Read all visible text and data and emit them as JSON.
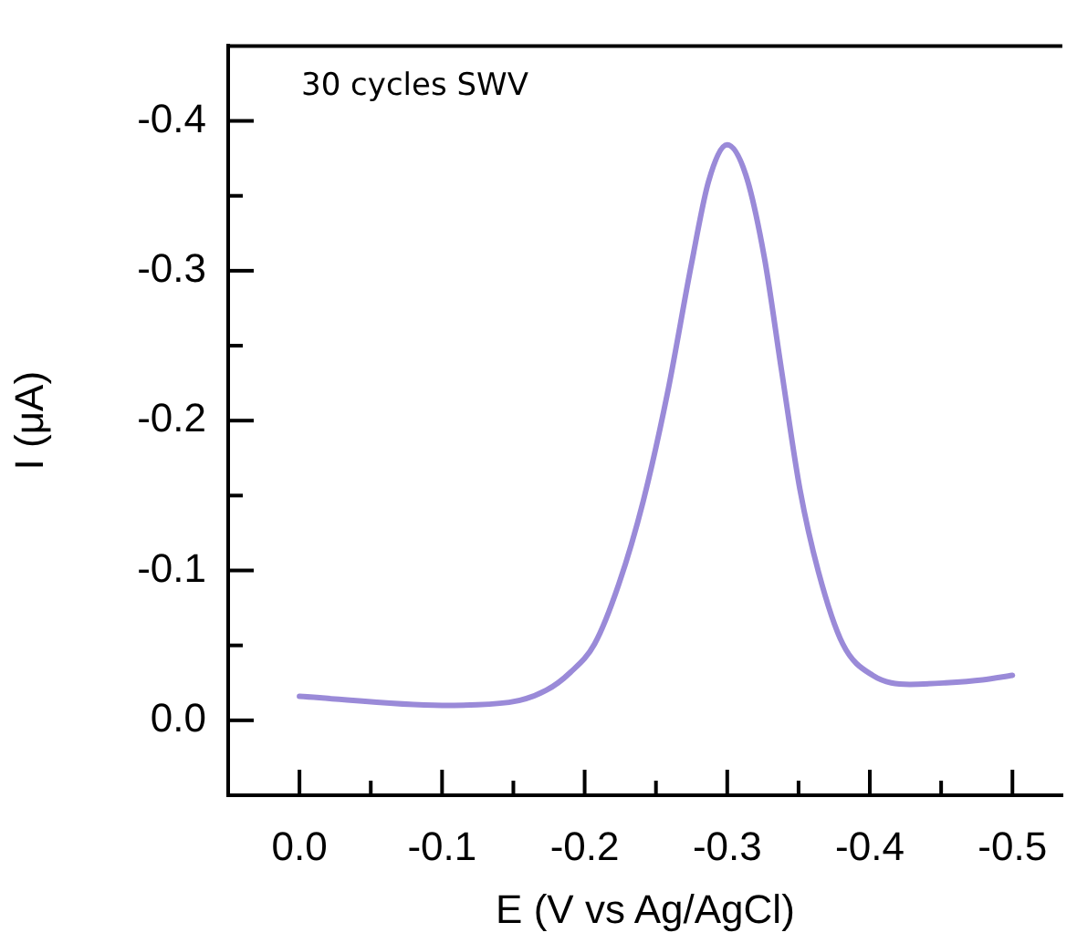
{
  "chart_data": {
    "type": "line",
    "xlabel": "E (V vs Ag/AgCl)",
    "ylabel": "I (μA)",
    "annotations": [
      "30 cycles SWV"
    ],
    "x": [
      0,
      -0.1,
      -0.147,
      -0.173,
      -0.19,
      -0.207,
      -0.224,
      -0.241,
      -0.258,
      -0.275,
      -0.287,
      -0.3,
      -0.313,
      -0.326,
      -0.338,
      -0.351,
      -0.364,
      -0.381,
      -0.402,
      -0.428,
      -0.453,
      -0.479,
      -0.5
    ],
    "series": [
      {
        "color": "#9a8ad8",
        "values": [
          -0.016,
          -0.01,
          -0.012,
          -0.02,
          -0.032,
          -0.051,
          -0.091,
          -0.146,
          -0.218,
          -0.305,
          -0.36,
          -0.384,
          -0.364,
          -0.309,
          -0.234,
          -0.154,
          -0.099,
          -0.051,
          -0.03,
          -0.024,
          -0.025,
          -0.027,
          -0.03
        ]
      }
    ],
    "xlim": [
      0.05,
      -0.535
    ],
    "ylim": [
      0.05,
      -0.45
    ],
    "xticks": [
      {
        "value": 0,
        "label": "0.0"
      },
      {
        "value": -0.05,
        "label": null
      },
      -0.1,
      {
        "value": -0.15,
        "label": null
      },
      -0.2,
      {
        "value": -0.25,
        "label": null
      },
      -0.3,
      {
        "value": -0.35,
        "label": null
      },
      -0.4,
      {
        "value": -0.45,
        "label": null
      },
      -0.5
    ],
    "yticks": [
      {
        "value": 0,
        "label": "0.0"
      },
      {
        "value": -0.05,
        "label": null
      },
      -0.1,
      {
        "value": -0.15,
        "label": null
      },
      -0.2,
      {
        "value": -0.25,
        "label": null
      },
      -0.3,
      {
        "value": -0.35,
        "label": null
      },
      -0.4
    ]
  }
}
